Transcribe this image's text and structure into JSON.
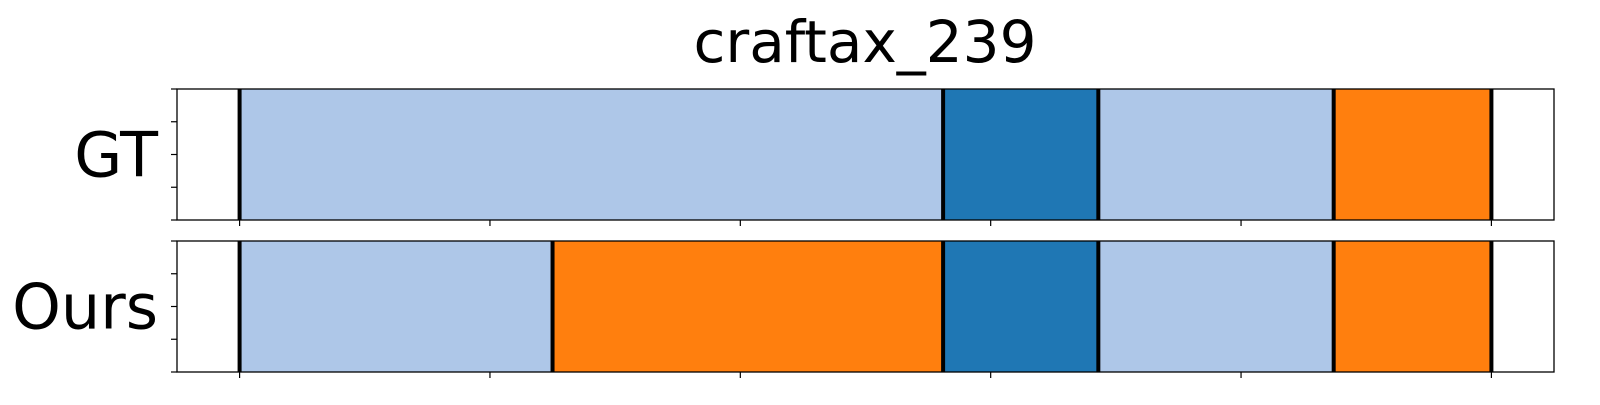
{
  "chart_data": {
    "type": "bar",
    "title": "craftax_239",
    "xlabel": "",
    "ylabel": "",
    "xlim": [
      -0.25,
      5.25
    ],
    "x_tick_count": 6,
    "y_tick_count": 5,
    "grid": false,
    "legend": "none",
    "rows": [
      {
        "label": "GT",
        "segments": [
          {
            "start": 0.0,
            "end": 2.81,
            "color": "#aec7e8"
          },
          {
            "start": 2.81,
            "end": 3.43,
            "color": "#1f77b4"
          },
          {
            "start": 3.43,
            "end": 4.37,
            "color": "#aec7e8"
          },
          {
            "start": 4.37,
            "end": 5.0,
            "color": "#ff7f0e"
          }
        ]
      },
      {
        "label": "Ours",
        "segments": [
          {
            "start": 0.0,
            "end": 1.25,
            "color": "#aec7e8"
          },
          {
            "start": 1.25,
            "end": 2.81,
            "color": "#ff7f0e"
          },
          {
            "start": 2.81,
            "end": 3.43,
            "color": "#1f77b4"
          },
          {
            "start": 3.43,
            "end": 4.37,
            "color": "#aec7e8"
          },
          {
            "start": 4.37,
            "end": 5.0,
            "color": "#ff7f0e"
          }
        ]
      }
    ]
  }
}
